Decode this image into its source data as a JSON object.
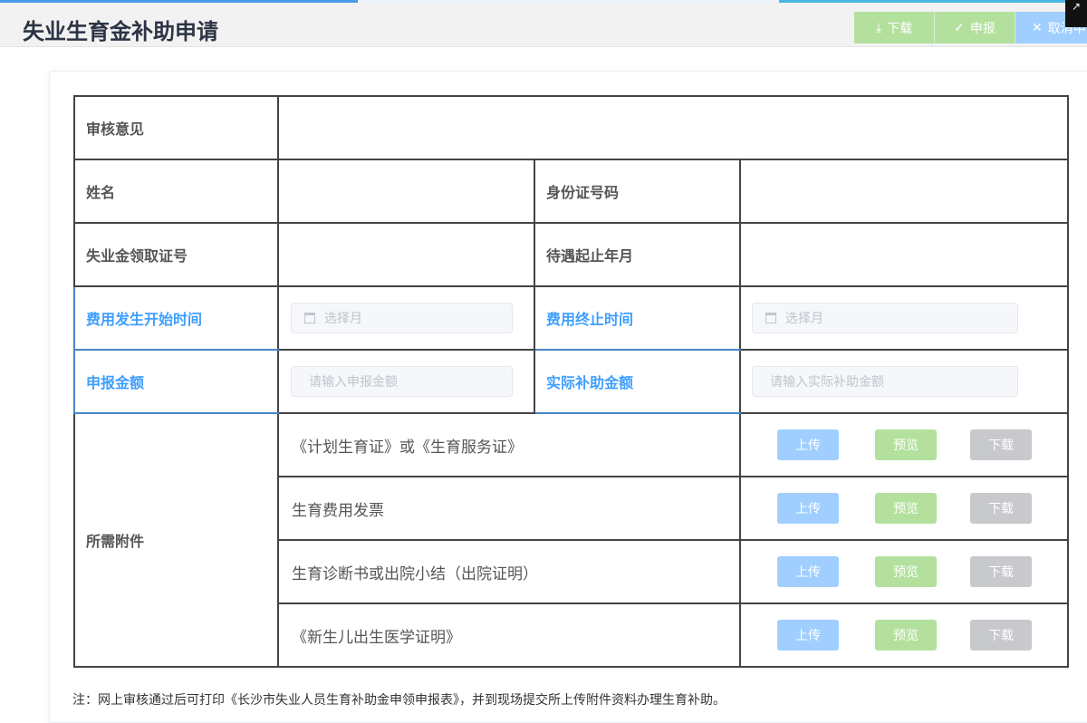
{
  "header": {
    "title": "失业生育金补助申请",
    "buttons": [
      {
        "icon": "download-icon",
        "label": "下载"
      },
      {
        "icon": "check-icon",
        "label": "申报"
      },
      {
        "icon": "close-icon",
        "label": "取消申请"
      }
    ]
  },
  "form": {
    "review_label": "审核意见",
    "review_value": "",
    "name_label": "姓名",
    "id_label": "身份证号码",
    "cert_label": "失业金领取证号",
    "period_label": "待遇起止年月",
    "start_label": "费用发生开始时间",
    "start_placeholder": "选择月",
    "end_label": "费用终止时间",
    "end_placeholder": "选择月",
    "amount_label": "申报金额",
    "amount_placeholder": "请输入申报金额",
    "actual_label": "实际补助金额",
    "actual_placeholder": "请输入实际补助金额",
    "attach_label": "所需附件",
    "attachments": [
      {
        "name": "《计划生育证》或《生育服务证》"
      },
      {
        "name": "生育费用发票"
      },
      {
        "name": "生育诊断书或出院小结（出院证明）"
      },
      {
        "name": "《新生儿出生医学证明》"
      }
    ],
    "upload_label": "上传",
    "preview_label": "预览",
    "download_label": "下载"
  },
  "note": "注：网上审核通过后可打印《长沙市失业人员生育补助金申领申报表》，并到现场提交所上传附件资料办理生育补助。",
  "colors": {
    "primary": "#409eff",
    "success": "#b3e19d",
    "upload": "#a0cfff",
    "download": "#c8c9cc"
  }
}
